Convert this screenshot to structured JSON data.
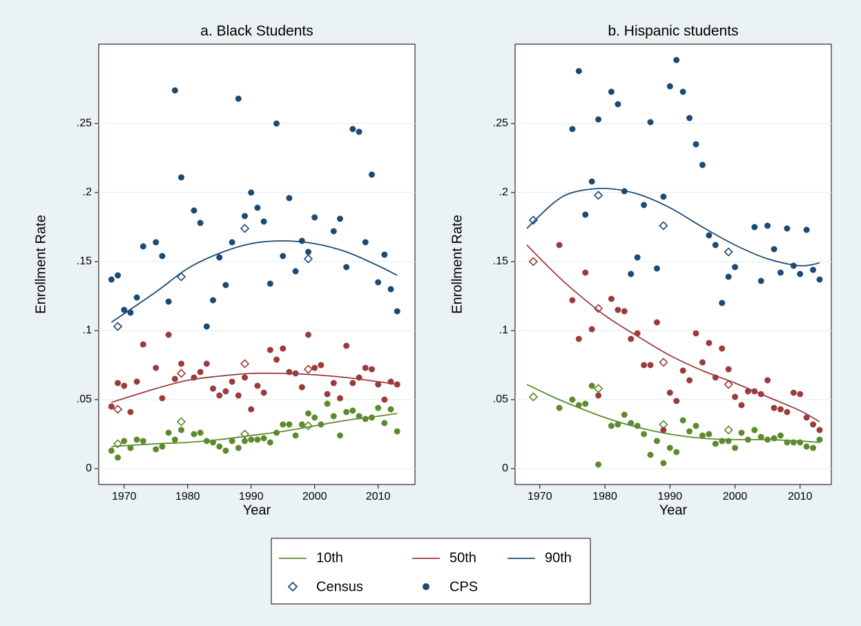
{
  "chart_data": [
    {
      "type": "scatter",
      "title": "a. Black Students",
      "xlabel": "Year",
      "ylabel": "Enrollment Rate",
      "xlim": [
        1966,
        2015.8
      ],
      "ylim": [
        -0.0115,
        0.3075
      ],
      "xticks": [
        1970,
        1980,
        1990,
        2000,
        2010
      ],
      "yticks": [
        0,
        {
          "value": 0.05,
          "label": ".05"
        },
        {
          "value": 0.1,
          "label": ".1"
        },
        {
          "value": 0.15,
          "label": ".15"
        },
        {
          "value": 0.2,
          "label": ".2"
        },
        {
          "value": 0.25,
          "label": ".25"
        }
      ],
      "grid": true,
      "series": [
        {
          "name": "10th",
          "color": "#5e8a2e",
          "cps": {
            "x": [
              1968,
              1969,
              1970,
              1971,
              1972,
              1973,
              1975,
              1976,
              1977,
              1978,
              1979,
              1981,
              1982,
              1983,
              1984,
              1985,
              1986,
              1987,
              1988,
              1989,
              1990,
              1991,
              1992,
              1993,
              1994,
              1995,
              1996,
              1997,
              1998,
              1999,
              2000,
              2001,
              2002,
              2003,
              2004,
              2005,
              2006,
              2007,
              2008,
              2009,
              2010,
              2011,
              2012,
              2013
            ],
            "values": [
              0.013,
              0.008,
              0.02,
              0.015,
              0.021,
              0.02,
              0.014,
              0.016,
              0.026,
              0.021,
              0.028,
              0.025,
              0.026,
              0.02,
              0.019,
              0.016,
              0.013,
              0.02,
              0.015,
              0.02,
              0.021,
              0.021,
              0.022,
              0.019,
              0.026,
              0.032,
              0.032,
              0.024,
              0.032,
              0.04,
              0.037,
              0.032,
              0.047,
              0.038,
              0.024,
              0.041,
              0.042,
              0.038,
              0.036,
              0.037,
              0.044,
              0.033,
              0.043,
              0.027
            ]
          },
          "census": {
            "x": [
              1969,
              1979,
              1989,
              1999
            ],
            "values": [
              0.018,
              0.034,
              0.025,
              0.031
            ]
          },
          "fit": {
            "x": [
              1968,
              1975,
              1980,
              1985,
              1990,
              1995,
              2000,
              2005,
              2010,
              2013
            ],
            "values": [
              0.016,
              0.018,
              0.019,
              0.021,
              0.024,
              0.027,
              0.031,
              0.035,
              0.038,
              0.04
            ]
          }
        },
        {
          "name": "50th",
          "color": "#9c3a3c",
          "cps": {
            "x": [
              1968,
              1969,
              1970,
              1971,
              1972,
              1973,
              1975,
              1976,
              1977,
              1978,
              1979,
              1981,
              1982,
              1983,
              1984,
              1985,
              1986,
              1987,
              1988,
              1989,
              1990,
              1991,
              1992,
              1993,
              1994,
              1995,
              1996,
              1997,
              1998,
              1999,
              2000,
              2001,
              2002,
              2003,
              2004,
              2005,
              2006,
              2007,
              2008,
              2009,
              2010,
              2011,
              2012,
              2013
            ],
            "values": [
              0.045,
              0.062,
              0.06,
              0.041,
              0.063,
              0.09,
              0.073,
              0.051,
              0.097,
              0.065,
              0.076,
              0.066,
              0.07,
              0.076,
              0.058,
              0.053,
              0.056,
              0.063,
              0.053,
              0.066,
              0.043,
              0.06,
              0.055,
              0.086,
              0.079,
              0.087,
              0.07,
              0.069,
              0.059,
              0.097,
              0.073,
              0.075,
              0.054,
              0.062,
              0.051,
              0.089,
              0.062,
              0.066,
              0.073,
              0.072,
              0.061,
              0.05,
              0.063,
              0.061
            ]
          },
          "census": {
            "x": [
              1969,
              1979,
              1989,
              1999
            ],
            "values": [
              0.043,
              0.069,
              0.076,
              0.072
            ]
          },
          "fit": {
            "x": [
              1968,
              1975,
              1980,
              1985,
              1990,
              1995,
              2000,
              2005,
              2010,
              2013
            ],
            "values": [
              0.048,
              0.058,
              0.064,
              0.067,
              0.069,
              0.069,
              0.068,
              0.066,
              0.063,
              0.061
            ]
          }
        },
        {
          "name": "90th",
          "color": "#1c4a73",
          "cps": {
            "x": [
              1968,
              1969,
              1970,
              1971,
              1972,
              1973,
              1975,
              1976,
              1977,
              1978,
              1979,
              1981,
              1982,
              1983,
              1984,
              1985,
              1986,
              1987,
              1988,
              1989,
              1990,
              1991,
              1992,
              1993,
              1994,
              1995,
              1996,
              1997,
              1998,
              1999,
              2000,
              2003,
              2004,
              2005,
              2006,
              2007,
              2008,
              2009,
              2010,
              2011,
              2012,
              2013
            ],
            "values": [
              0.137,
              0.14,
              0.115,
              0.113,
              0.124,
              0.161,
              0.164,
              0.154,
              0.121,
              0.274,
              0.211,
              0.187,
              0.178,
              0.103,
              0.122,
              0.153,
              0.133,
              0.164,
              0.268,
              0.183,
              0.2,
              0.189,
              0.179,
              0.134,
              0.25,
              0.154,
              0.196,
              0.143,
              0.165,
              0.157,
              0.182,
              0.172,
              0.181,
              0.146,
              0.246,
              0.244,
              0.164,
              0.213,
              0.135,
              0.155,
              0.13,
              0.114
            ]
          },
          "census": {
            "x": [
              1969,
              1979,
              1989,
              1999
            ],
            "values": [
              0.103,
              0.139,
              0.174,
              0.152
            ]
          },
          "fit": {
            "x": [
              1968,
              1975,
              1980,
              1985,
              1990,
              1995,
              2000,
              2005,
              2010,
              2013
            ],
            "values": [
              0.106,
              0.128,
              0.145,
              0.156,
              0.163,
              0.165,
              0.163,
              0.157,
              0.147,
              0.14
            ]
          }
        }
      ]
    },
    {
      "type": "scatter",
      "title": "b. Hispanic students",
      "xlabel": "Year",
      "ylabel": "Enrollment Rate",
      "xlim": [
        1966.2,
        2014.8
      ],
      "ylim": [
        -0.0115,
        0.3075
      ],
      "xticks": [
        1970,
        1980,
        1990,
        2000,
        2010
      ],
      "yticks": [
        0,
        {
          "value": 0.05,
          "label": ".05"
        },
        {
          "value": 0.1,
          "label": ".1"
        },
        {
          "value": 0.15,
          "label": ".15"
        },
        {
          "value": 0.2,
          "label": ".2"
        },
        {
          "value": 0.25,
          "label": ".25"
        }
      ],
      "grid": true,
      "series": [
        {
          "name": "10th",
          "color": "#5e8a2e",
          "cps": {
            "x": [
              1973,
              1975,
              1976,
              1977,
              1978,
              1979,
              1981,
              1982,
              1983,
              1984,
              1985,
              1986,
              1987,
              1988,
              1989,
              1990,
              1991,
              1992,
              1993,
              1994,
              1995,
              1996,
              1997,
              1998,
              1999,
              2000,
              2001,
              2002,
              2003,
              2004,
              2005,
              2006,
              2007,
              2008,
              2009,
              2010,
              2011,
              2012,
              2013
            ],
            "values": [
              0.044,
              0.05,
              0.046,
              0.047,
              0.06,
              0.003,
              0.031,
              0.032,
              0.039,
              0.033,
              0.031,
              0.025,
              0.01,
              0.02,
              0.004,
              0.015,
              0.012,
              0.035,
              0.027,
              0.031,
              0.024,
              0.025,
              0.018,
              0.02,
              0.02,
              0.015,
              0.026,
              0.021,
              0.028,
              0.023,
              0.021,
              0.022,
              0.024,
              0.019,
              0.019,
              0.019,
              0.016,
              0.015,
              0.021
            ]
          },
          "census": {
            "x": [
              1969,
              1979,
              1989,
              1999
            ],
            "values": [
              0.052,
              0.058,
              0.032,
              0.028
            ]
          },
          "fit": {
            "x": [
              1968,
              1972,
              1975,
              1980,
              1985,
              1990,
              1995,
              2000,
              2005,
              2010,
              2013
            ],
            "values": [
              0.061,
              0.052,
              0.046,
              0.037,
              0.03,
              0.025,
              0.022,
              0.021,
              0.021,
              0.02,
              0.019
            ]
          }
        },
        {
          "name": "50th",
          "color": "#9c3a3c",
          "cps": {
            "x": [
              1973,
              1975,
              1976,
              1977,
              1978,
              1979,
              1981,
              1982,
              1983,
              1984,
              1985,
              1986,
              1987,
              1988,
              1989,
              1990,
              1991,
              1992,
              1993,
              1994,
              1995,
              1996,
              1997,
              1998,
              1999,
              2000,
              2001,
              2002,
              2003,
              2004,
              2005,
              2006,
              2007,
              2008,
              2009,
              2010,
              2011,
              2012,
              2013
            ],
            "values": [
              0.162,
              0.122,
              0.094,
              0.142,
              0.101,
              0.053,
              0.123,
              0.115,
              0.114,
              0.094,
              0.098,
              0.075,
              0.075,
              0.106,
              0.028,
              0.055,
              0.049,
              0.071,
              0.064,
              0.098,
              0.077,
              0.091,
              0.066,
              0.087,
              0.072,
              0.052,
              0.046,
              0.056,
              0.056,
              0.054,
              0.064,
              0.044,
              0.043,
              0.041,
              0.055,
              0.054,
              0.037,
              0.032,
              0.028
            ]
          },
          "census": {
            "x": [
              1969,
              1979,
              1989,
              1999
            ],
            "values": [
              0.15,
              0.116,
              0.077,
              0.061
            ]
          },
          "fit": {
            "x": [
              1968,
              1972,
              1975,
              1980,
              1985,
              1990,
              1995,
              2000,
              2005,
              2010,
              2013
            ],
            "values": [
              0.162,
              0.143,
              0.13,
              0.111,
              0.096,
              0.082,
              0.071,
              0.062,
              0.052,
              0.042,
              0.034
            ]
          }
        },
        {
          "name": "90th",
          "color": "#1c4a73",
          "cps": {
            "x": [
              1975,
              1976,
              1977,
              1978,
              1979,
              1981,
              1982,
              1983,
              1984,
              1985,
              1986,
              1987,
              1988,
              1989,
              1990,
              1991,
              1992,
              1993,
              1994,
              1995,
              1996,
              1997,
              1998,
              1999,
              2000,
              2003,
              2004,
              2005,
              2006,
              2007,
              2008,
              2009,
              2010,
              2011,
              2012,
              2013
            ],
            "values": [
              0.246,
              0.288,
              0.184,
              0.208,
              0.253,
              0.273,
              0.264,
              0.201,
              0.141,
              0.153,
              0.191,
              0.251,
              0.145,
              0.197,
              0.277,
              0.296,
              0.273,
              0.254,
              0.235,
              0.22,
              0.169,
              0.162,
              0.12,
              0.139,
              0.146,
              0.175,
              0.136,
              0.176,
              0.159,
              0.142,
              0.174,
              0.147,
              0.141,
              0.173,
              0.144,
              0.137
            ]
          },
          "census": {
            "x": [
              1969,
              1979,
              1989,
              1999
            ],
            "values": [
              0.18,
              0.198,
              0.176,
              0.157
            ]
          },
          "fit": {
            "x": [
              1968,
              1972,
              1975,
              1980,
              1985,
              1990,
              1995,
              2000,
              2005,
              2010,
              2013
            ],
            "values": [
              0.174,
              0.192,
              0.2,
              0.203,
              0.199,
              0.189,
              0.175,
              0.162,
              0.152,
              0.147,
              0.149
            ]
          }
        }
      ]
    }
  ],
  "legend": {
    "position": "bottom",
    "census": "Census",
    "cps": "CPS"
  }
}
